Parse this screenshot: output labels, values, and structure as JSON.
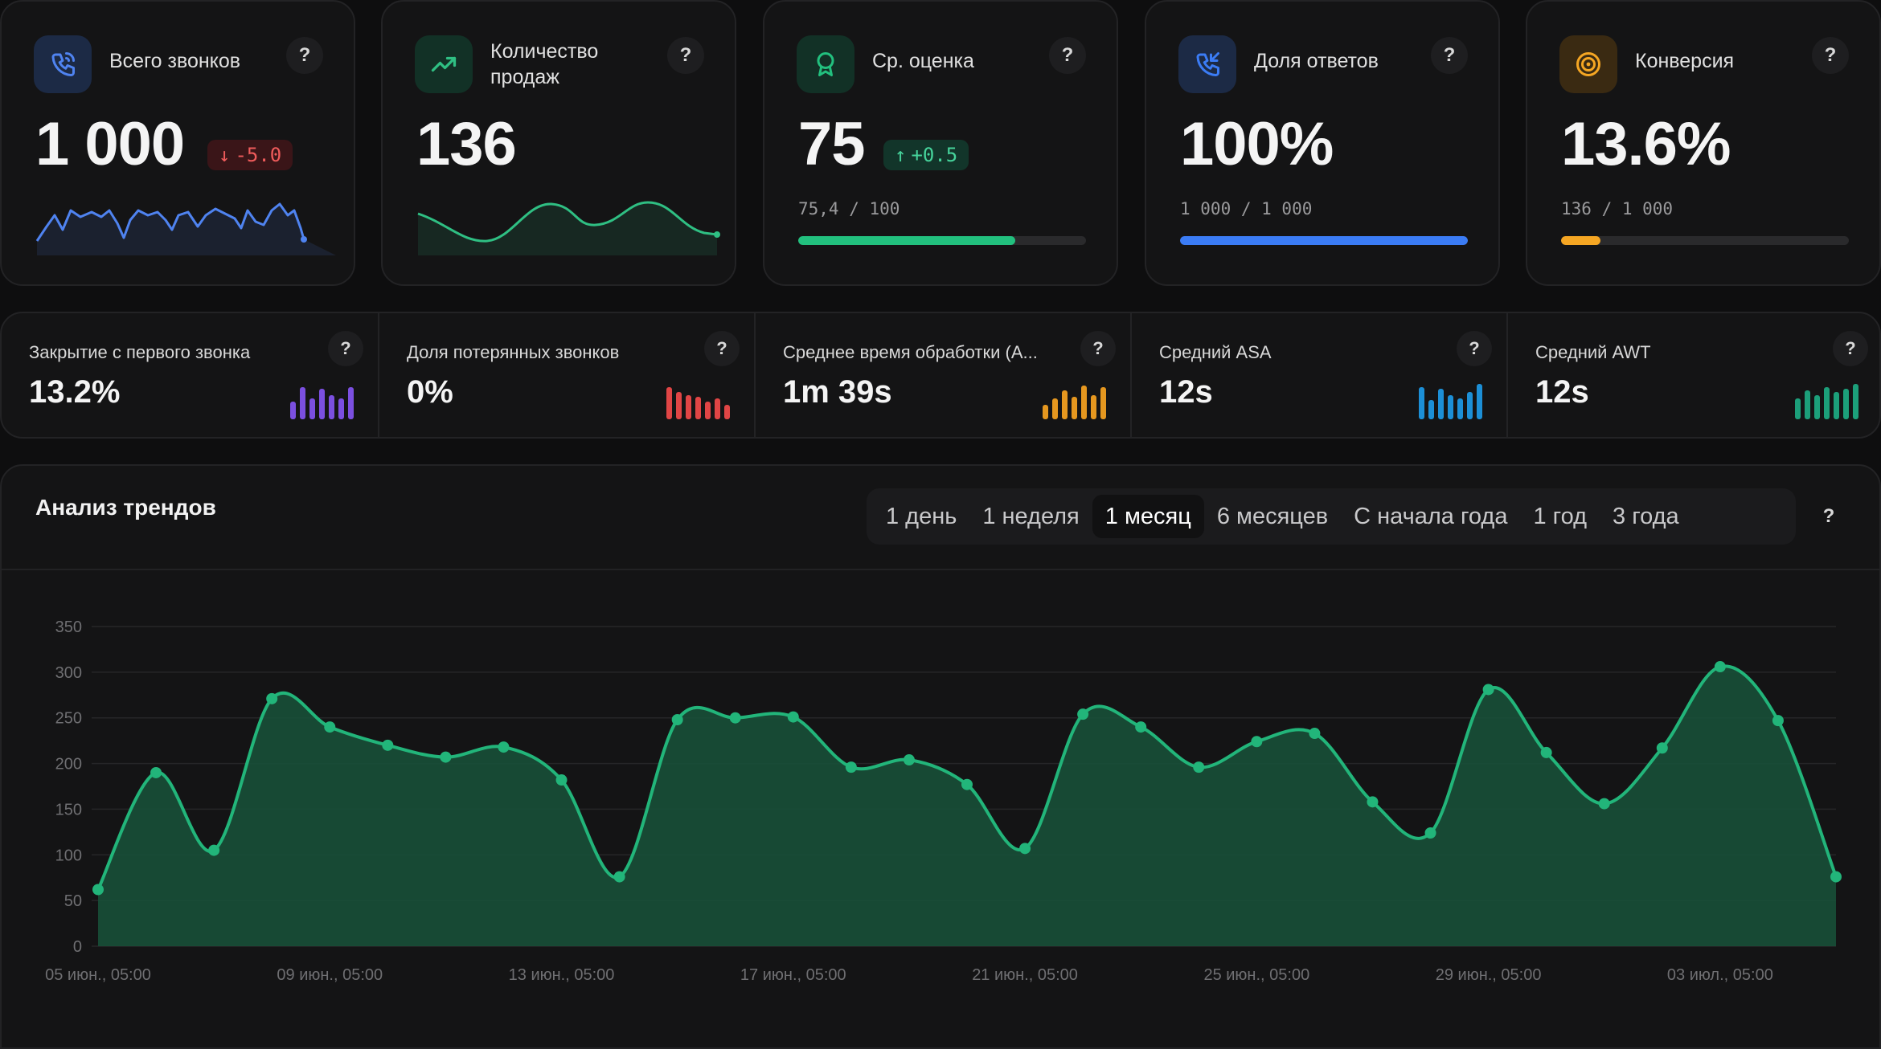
{
  "kpis": [
    {
      "title": "Всего звонков",
      "value": "1 000",
      "badge": "-5.0",
      "badge_dir": "down",
      "icon": "phone-icon",
      "color": "#4f83f0"
    },
    {
      "title": "Количество продаж",
      "value": "136",
      "icon": "trending-up-icon",
      "color": "#2fbf83"
    },
    {
      "title": "Ср. оценка",
      "value": "75",
      "badge": "+0.5",
      "badge_dir": "up",
      "ratio": "75,4 / 100",
      "progress": 0.754,
      "icon": "award-icon",
      "color": "#22c07e"
    },
    {
      "title": "Доля ответов",
      "value": "100%",
      "ratio": "1 000 / 1 000",
      "progress": 1.0,
      "icon": "phone-incoming-icon",
      "color": "#3b7cf5"
    },
    {
      "title": "Конверсия",
      "value": "13.6%",
      "ratio": "136 / 1 000",
      "progress": 0.136,
      "icon": "target-icon",
      "color": "#f5a623"
    }
  ],
  "metrics": [
    {
      "label": "Закрытие с первого звонка",
      "value": "13.2%",
      "color": "#7b4fe0"
    },
    {
      "label": "Доля потерянных звонков",
      "value": "0%",
      "color": "#e04545"
    },
    {
      "label": "Среднее время обработки (A...",
      "value": "1m 39s",
      "color": "#e5971f"
    },
    {
      "label": "Средний ASA",
      "value": "12s",
      "color": "#1c8fd6"
    },
    {
      "label": "Средний AWT",
      "value": "12s",
      "color": "#1c9f7a"
    }
  ],
  "help_label": "?",
  "trend": {
    "title": "Анализ трендов",
    "ranges": [
      "1 день",
      "1 неделя",
      "1 месяц",
      "6 месяцев",
      "С начала года",
      "1 год",
      "3 года"
    ],
    "active_range": "1 месяц"
  },
  "chart_data": {
    "type": "area",
    "ylim": [
      0,
      350
    ],
    "yticks": [
      0,
      50,
      100,
      150,
      200,
      250,
      300,
      350
    ],
    "x_labels": [
      "05 июн., 05:00",
      "09 июн., 05:00",
      "13 июн., 05:00",
      "17 июн., 05:00",
      "21 июн., 05:00",
      "25 июн., 05:00",
      "29 июн., 05:00",
      "03 июл., 05:00"
    ],
    "series": [
      {
        "values": [
          62,
          190,
          105,
          271,
          240,
          220,
          207,
          218,
          182,
          76,
          248,
          250,
          251,
          196,
          204,
          177,
          107,
          254,
          240,
          196,
          224,
          233,
          158,
          124,
          281,
          212,
          156,
          217,
          306,
          247,
          76
        ],
        "color": "#22b57a"
      }
    ],
    "grid": true
  }
}
